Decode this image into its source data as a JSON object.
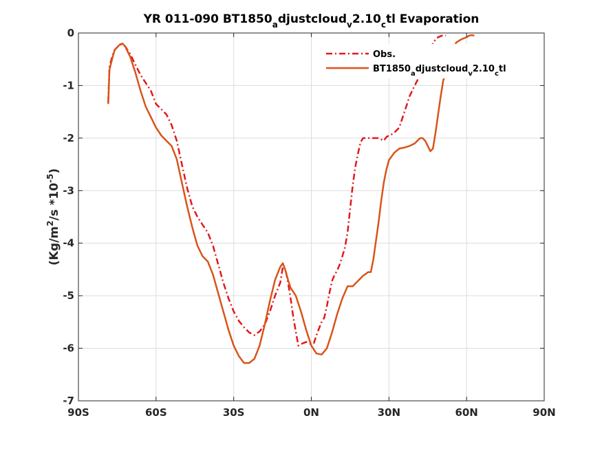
{
  "chart_data": {
    "type": "line",
    "title": {
      "base": "YR 011-090 BT1850",
      "sub1": "a",
      "mid": "djustcloud",
      "sub2": "v",
      "mid2": "2.10",
      "sub3": "c",
      "end": "tl Evaporation"
    },
    "ylabel": {
      "pre": "(Kg/m",
      "sup1": "2",
      "mid": "/s *10",
      "sup2": "-5",
      "post": ")"
    },
    "xlim": [
      -90,
      90
    ],
    "ylim": [
      -7,
      0
    ],
    "x_ticks": [
      -90,
      -60,
      -30,
      0,
      30,
      60,
      90
    ],
    "x_tick_labels": [
      "90S",
      "60S",
      "30S",
      "0N",
      "30N",
      "60N",
      "90N"
    ],
    "y_ticks": [
      0,
      -1,
      -2,
      -3,
      -4,
      -5,
      -6,
      -7
    ],
    "y_tick_labels": [
      "0",
      "-1",
      "-2",
      "-3",
      "-4",
      "-5",
      "-6",
      "-7"
    ],
    "grid": true,
    "legend_position": "top-right",
    "series": [
      {
        "name": "Obs.",
        "color": "#e3171c",
        "dash": true,
        "points": [
          [
            -78.5,
            -1.32
          ],
          [
            -78,
            -0.65
          ],
          [
            -77,
            -0.45
          ],
          [
            -76,
            -0.32
          ],
          [
            -74,
            -0.22
          ],
          [
            -73,
            -0.22
          ],
          [
            -72,
            -0.25
          ],
          [
            -70,
            -0.4
          ],
          [
            -68,
            -0.6
          ],
          [
            -66,
            -0.8
          ],
          [
            -64,
            -0.95
          ],
          [
            -62,
            -1.1
          ],
          [
            -60,
            -1.35
          ],
          [
            -58,
            -1.45
          ],
          [
            -56,
            -1.55
          ],
          [
            -54,
            -1.75
          ],
          [
            -52,
            -2.05
          ],
          [
            -50,
            -2.5
          ],
          [
            -48,
            -2.95
          ],
          [
            -46,
            -3.3
          ],
          [
            -44,
            -3.5
          ],
          [
            -42,
            -3.65
          ],
          [
            -40,
            -3.8
          ],
          [
            -38,
            -4.05
          ],
          [
            -36,
            -4.4
          ],
          [
            -34,
            -4.75
          ],
          [
            -32,
            -5.05
          ],
          [
            -30,
            -5.3
          ],
          [
            -28,
            -5.48
          ],
          [
            -26,
            -5.6
          ],
          [
            -24,
            -5.7
          ],
          [
            -22,
            -5.75
          ],
          [
            -20,
            -5.68
          ],
          [
            -18,
            -5.55
          ],
          [
            -16,
            -5.3
          ],
          [
            -14,
            -5.0
          ],
          [
            -12,
            -4.75
          ],
          [
            -11,
            -4.45
          ],
          [
            -10,
            -4.5
          ],
          [
            -9,
            -4.75
          ],
          [
            -8,
            -5.05
          ],
          [
            -7,
            -5.4
          ],
          [
            -6,
            -5.68
          ],
          [
            -5,
            -5.95
          ],
          [
            -4,
            -5.92
          ],
          [
            -3,
            -5.9
          ],
          [
            -2,
            -5.88
          ],
          [
            -1,
            -5.9
          ],
          [
            0,
            -5.92
          ],
          [
            1,
            -5.9
          ],
          [
            2,
            -5.75
          ],
          [
            3,
            -5.62
          ],
          [
            4,
            -5.5
          ],
          [
            5,
            -5.42
          ],
          [
            6,
            -5.2
          ],
          [
            7,
            -4.95
          ],
          [
            8,
            -4.72
          ],
          [
            9,
            -4.6
          ],
          [
            10,
            -4.52
          ],
          [
            11,
            -4.4
          ],
          [
            12,
            -4.25
          ],
          [
            13,
            -4.08
          ],
          [
            14,
            -3.8
          ],
          [
            15,
            -3.35
          ],
          [
            16,
            -2.9
          ],
          [
            17,
            -2.55
          ],
          [
            18,
            -2.3
          ],
          [
            19,
            -2.08
          ],
          [
            20,
            -2.0
          ],
          [
            22,
            -2.0
          ],
          [
            24,
            -2.0
          ],
          [
            26,
            -2.0
          ],
          [
            28,
            -2.05
          ],
          [
            29,
            -1.98
          ],
          [
            30,
            -1.95
          ],
          [
            31,
            -1.93
          ],
          [
            32,
            -1.9
          ],
          [
            33,
            -1.85
          ],
          [
            34,
            -1.8
          ],
          [
            35,
            -1.65
          ],
          [
            36,
            -1.5
          ],
          [
            37,
            -1.35
          ],
          [
            38,
            -1.2
          ],
          [
            40,
            -1.0
          ],
          [
            42,
            -0.8
          ],
          [
            44,
            -0.55
          ],
          [
            45,
            -0.4
          ],
          [
            46,
            -0.28
          ],
          [
            47,
            -0.2
          ],
          [
            48,
            -0.12
          ],
          [
            49,
            -0.08
          ],
          [
            50,
            -0.06
          ],
          [
            51,
            -0.04
          ],
          [
            52,
            -0.05
          ]
        ]
      },
      {
        "name": "BT1850_adjustcloud_v2.10_ctl",
        "label": {
          "base": "BT1850",
          "sub1": "a",
          "mid": "djustcloud",
          "sub2": "v",
          "mid2": "2.10",
          "sub3": "c",
          "end": "tl"
        },
        "color": "#d95319",
        "dash": false,
        "points": [
          [
            -78.5,
            -1.35
          ],
          [
            -78,
            -0.7
          ],
          [
            -77,
            -0.5
          ],
          [
            -76,
            -0.32
          ],
          [
            -74,
            -0.22
          ],
          [
            -73,
            -0.2
          ],
          [
            -72,
            -0.25
          ],
          [
            -70,
            -0.45
          ],
          [
            -68,
            -0.75
          ],
          [
            -66,
            -1.1
          ],
          [
            -64,
            -1.4
          ],
          [
            -62,
            -1.6
          ],
          [
            -60,
            -1.8
          ],
          [
            -58,
            -1.95
          ],
          [
            -56,
            -2.05
          ],
          [
            -54,
            -2.15
          ],
          [
            -52,
            -2.4
          ],
          [
            -50,
            -2.85
          ],
          [
            -48,
            -3.3
          ],
          [
            -46,
            -3.7
          ],
          [
            -44,
            -4.05
          ],
          [
            -42,
            -4.25
          ],
          [
            -40,
            -4.35
          ],
          [
            -38,
            -4.6
          ],
          [
            -36,
            -4.95
          ],
          [
            -34,
            -5.3
          ],
          [
            -32,
            -5.65
          ],
          [
            -30,
            -5.95
          ],
          [
            -28,
            -6.15
          ],
          [
            -26,
            -6.28
          ],
          [
            -24,
            -6.28
          ],
          [
            -22,
            -6.2
          ],
          [
            -20,
            -5.95
          ],
          [
            -18,
            -5.55
          ],
          [
            -16,
            -5.1
          ],
          [
            -14,
            -4.7
          ],
          [
            -12,
            -4.45
          ],
          [
            -11,
            -4.38
          ],
          [
            -10,
            -4.52
          ],
          [
            -9,
            -4.7
          ],
          [
            -8,
            -4.85
          ],
          [
            -6,
            -5.0
          ],
          [
            -4,
            -5.3
          ],
          [
            -2,
            -5.65
          ],
          [
            0,
            -5.95
          ],
          [
            2,
            -6.1
          ],
          [
            4,
            -6.12
          ],
          [
            6,
            -6.0
          ],
          [
            8,
            -5.7
          ],
          [
            10,
            -5.35
          ],
          [
            12,
            -5.05
          ],
          [
            14,
            -4.82
          ],
          [
            16,
            -4.82
          ],
          [
            18,
            -4.72
          ],
          [
            20,
            -4.62
          ],
          [
            22,
            -4.55
          ],
          [
            23,
            -4.55
          ],
          [
            24,
            -4.3
          ],
          [
            25,
            -3.95
          ],
          [
            26,
            -3.6
          ],
          [
            27,
            -3.2
          ],
          [
            28,
            -2.85
          ],
          [
            29,
            -2.6
          ],
          [
            30,
            -2.42
          ],
          [
            32,
            -2.28
          ],
          [
            34,
            -2.2
          ],
          [
            36,
            -2.18
          ],
          [
            38,
            -2.15
          ],
          [
            40,
            -2.1
          ],
          [
            41,
            -2.05
          ],
          [
            42,
            -2.0
          ],
          [
            43,
            -2.0
          ],
          [
            44,
            -2.05
          ],
          [
            45,
            -2.15
          ],
          [
            46,
            -2.25
          ],
          [
            47,
            -2.2
          ],
          [
            48,
            -1.9
          ],
          [
            49,
            -1.55
          ],
          [
            50,
            -1.2
          ],
          [
            51,
            -0.9
          ],
          [
            52,
            -0.75
          ],
          [
            53,
            -0.6
          ],
          [
            54,
            -0.45
          ],
          [
            55,
            -0.3
          ],
          [
            56,
            -0.18
          ],
          [
            58,
            -0.12
          ],
          [
            60,
            -0.08
          ],
          [
            61,
            -0.05
          ],
          [
            62,
            -0.04
          ],
          [
            63,
            -0.05
          ]
        ]
      }
    ]
  }
}
